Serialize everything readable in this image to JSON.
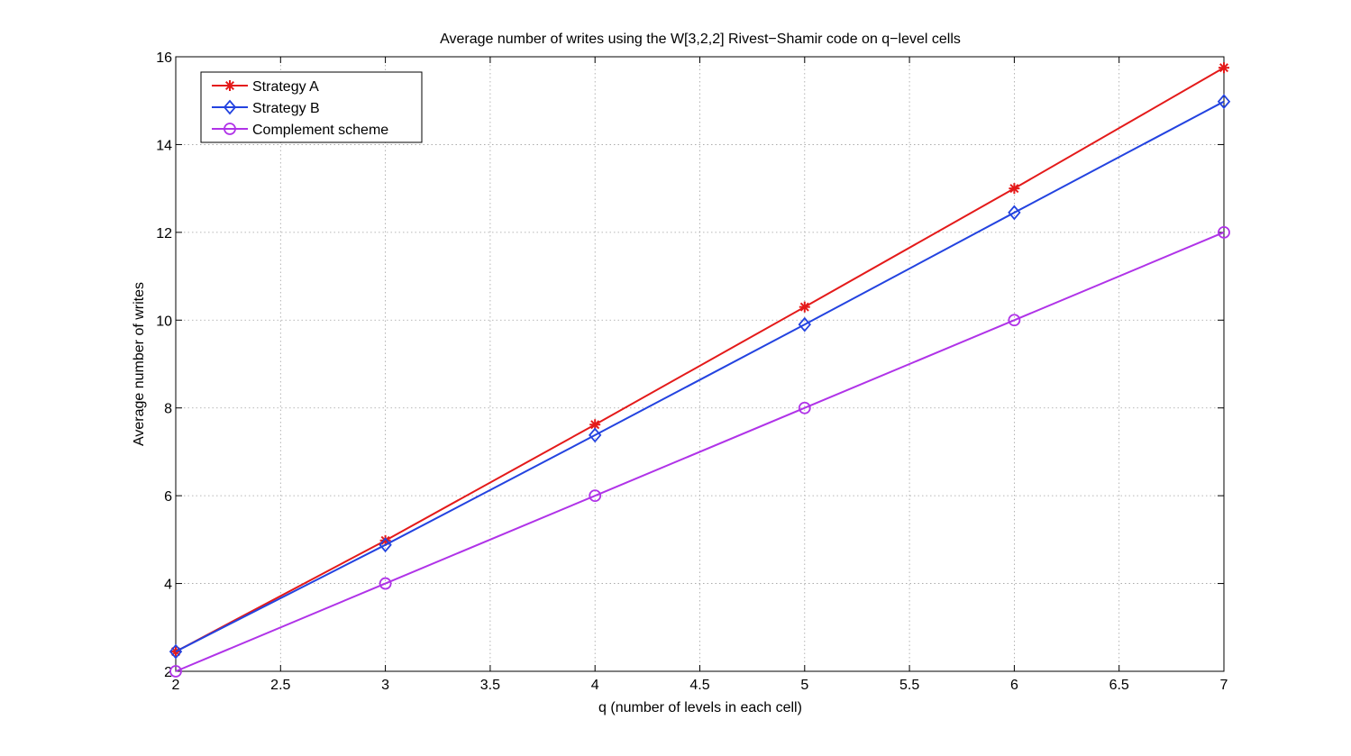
{
  "chart_data": {
    "type": "line",
    "title": "Average number of writes using the W[3,2,2] Rivest−Shamir code on q−level cells",
    "xlabel": "q (number of levels in each cell)",
    "ylabel": "Average number of writes",
    "xlim": [
      2,
      7
    ],
    "ylim": [
      2,
      16
    ],
    "xticks": [
      "2",
      "2.5",
      "3",
      "3.5",
      "4",
      "4.5",
      "5",
      "5.5",
      "6",
      "6.5",
      "7"
    ],
    "yticks": [
      "2",
      "4",
      "6",
      "8",
      "10",
      "12",
      "14",
      "16"
    ],
    "grid": true,
    "legend_position": "top-left",
    "x": [
      2,
      3,
      4,
      5,
      6,
      7
    ],
    "series": [
      {
        "name": "Strategy A",
        "color": "#e41a1a",
        "marker": "asterisk",
        "values": [
          2.45,
          4.98,
          7.62,
          10.3,
          13.0,
          15.75
        ]
      },
      {
        "name": "Strategy B",
        "color": "#2343e0",
        "marker": "diamond",
        "values": [
          2.45,
          4.88,
          7.38,
          9.9,
          12.45,
          14.98
        ]
      },
      {
        "name": "Complement scheme",
        "color": "#b033e8",
        "marker": "circle",
        "values": [
          2.0,
          4.0,
          6.0,
          8.0,
          10.0,
          12.0
        ]
      }
    ]
  }
}
